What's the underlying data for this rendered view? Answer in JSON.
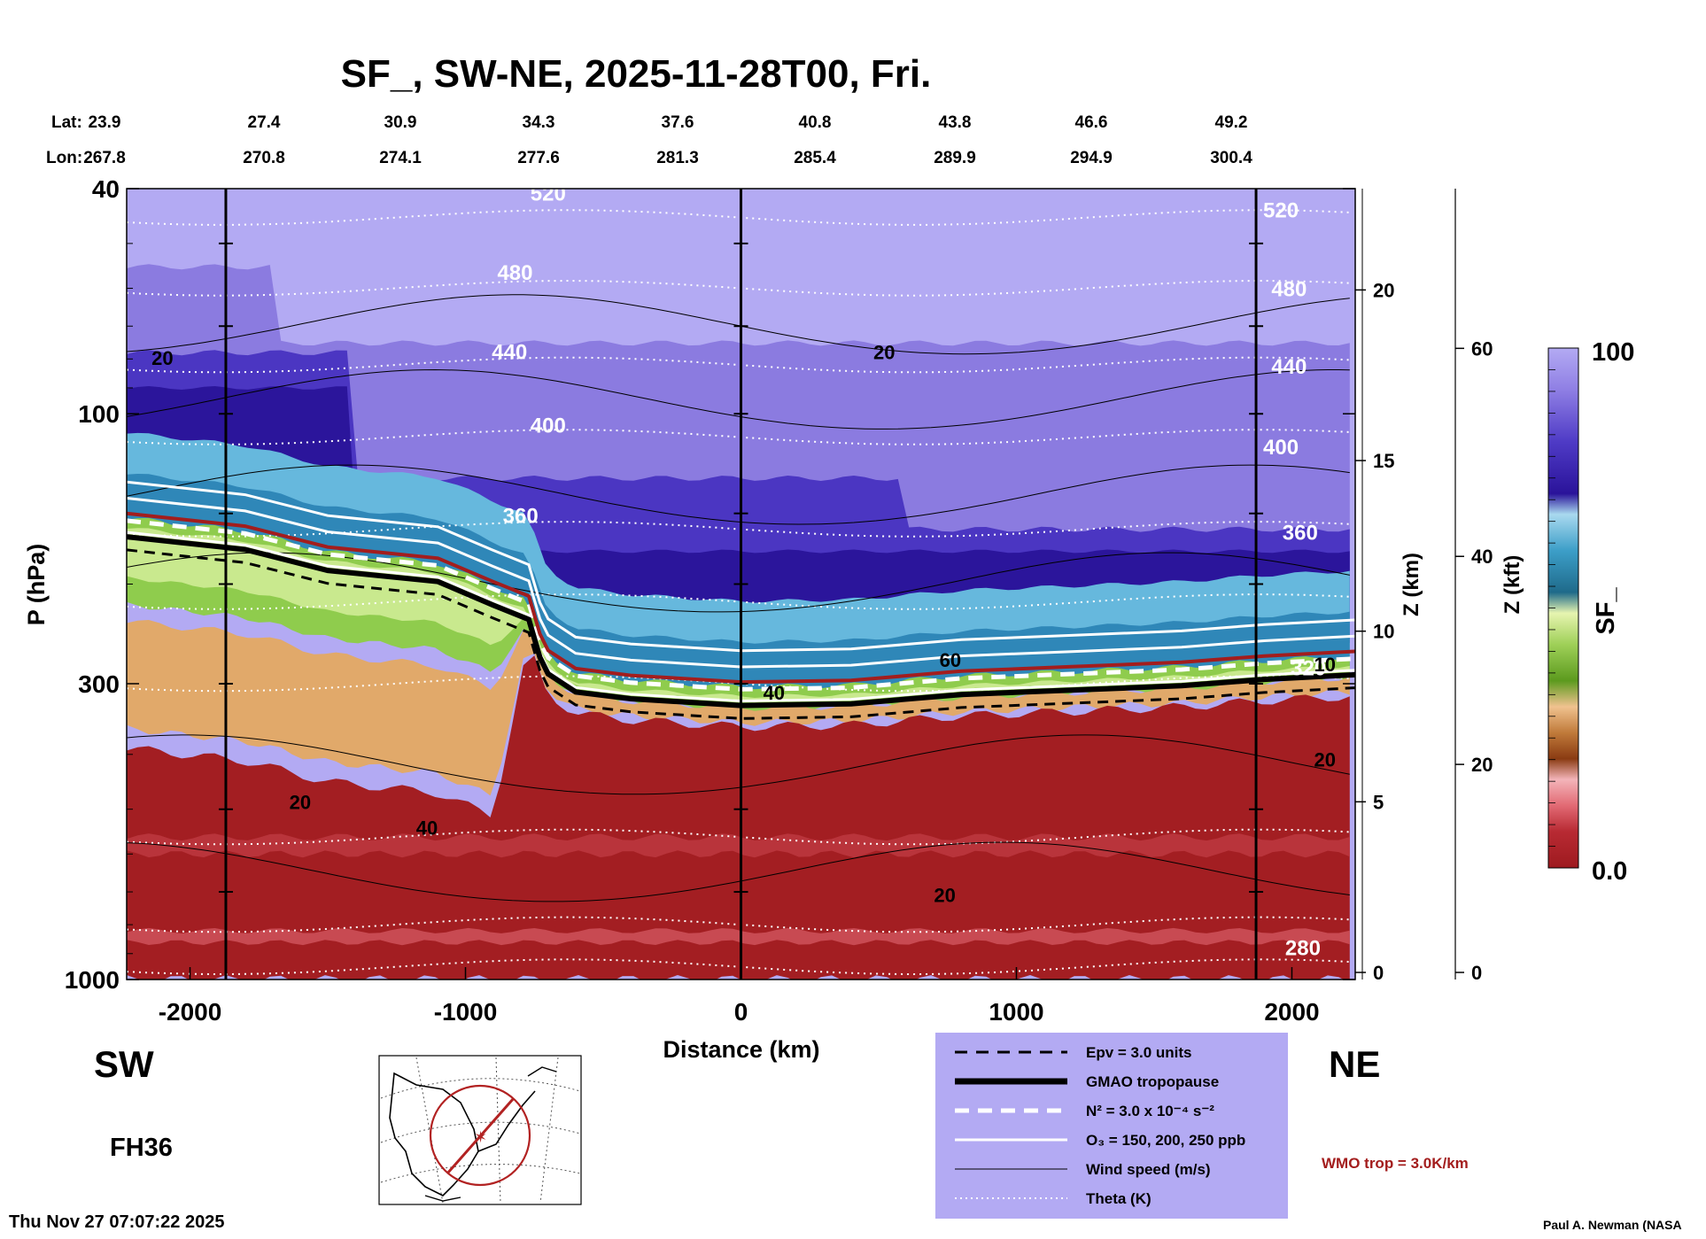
{
  "title": "SF_, SW-NE, 2025-11-28T00, Fri.",
  "coords": {
    "lat_label": "Lat:",
    "lon_label": "Lon:",
    "lat": [
      "23.9",
      "27.4",
      "30.9",
      "34.3",
      "37.6",
      "40.8",
      "43.8",
      "46.6",
      "49.2"
    ],
    "lon": [
      "267.8",
      "270.8",
      "274.1",
      "277.6",
      "281.3",
      "285.4",
      "289.9",
      "294.9",
      "300.4"
    ]
  },
  "axes": {
    "xlabel": "Distance (km)",
    "ylabel": "P (hPa)",
    "z_km_label": "Z (km)",
    "z_kft_label": "Z (kft)",
    "colorbar_label": "SF_"
  },
  "labels": {
    "sw": "SW",
    "ne": "NE",
    "forecast_hour": "FH36",
    "timestamp": "Thu Nov 27 07:07:22 2025",
    "author": "Paul A. Newman (NASA",
    "wmo_note": "WMO trop = 3.0K/km"
  },
  "legend": {
    "items": [
      {
        "label": "Epv = 3.0 units",
        "style": "dashed-black"
      },
      {
        "label": "GMAO tropopause",
        "style": "thick-black"
      },
      {
        "label": "N² = 3.0 x 10⁻⁴ s⁻²",
        "style": "dashed-white"
      },
      {
        "label": "O₃ = 150, 200, 250 ppb",
        "style": "solid-white"
      },
      {
        "label": "Wind speed (m/s)",
        "style": "thin-black"
      },
      {
        "label": "Theta (K)",
        "style": "dotted-white"
      }
    ],
    "background": "#b3aaf3"
  },
  "colors": {
    "wmo": "#a31d1d",
    "stratosphere": "#b3aaf3",
    "tropical_red": "#a31e22"
  },
  "chart_data": {
    "type": "heatmap",
    "title": "SF_, SW-NE, 2025-11-28T00, Fri.",
    "xlabel": "Distance (km)",
    "ylabel": "P (hPa)",
    "x_ticks": [
      -2000,
      -1000,
      0,
      1000,
      2000
    ],
    "xlim": [
      -2230,
      2230
    ],
    "y_ticks": [
      40,
      100,
      300,
      1000
    ],
    "ylim": [
      1000,
      40
    ],
    "y_scale": "log",
    "z_km_ticks": [
      0,
      5,
      10,
      15,
      20
    ],
    "z_kft_ticks": [
      0,
      20,
      40,
      60
    ],
    "colorbar": {
      "min": "0.0",
      "max": "100",
      "range": [
        0,
        100
      ]
    },
    "vertical_lines_km": [
      -1870,
      0,
      1870
    ],
    "theta_labels": [
      {
        "text": "520",
        "x": -700,
        "p": 42
      },
      {
        "text": "480",
        "x": -820,
        "p": 58
      },
      {
        "text": "440",
        "x": -840,
        "p": 80
      },
      {
        "text": "400",
        "x": -700,
        "p": 108
      },
      {
        "text": "360",
        "x": -800,
        "p": 156
      },
      {
        "text": "520",
        "x": 1960,
        "p": 45
      },
      {
        "text": "480",
        "x": 1990,
        "p": 62
      },
      {
        "text": "440",
        "x": 1990,
        "p": 85
      },
      {
        "text": "400",
        "x": 1960,
        "p": 118
      },
      {
        "text": "360",
        "x": 2030,
        "p": 167
      },
      {
        "text": "320",
        "x": 2060,
        "p": 290
      },
      {
        "text": "280",
        "x": 2040,
        "p": 905
      }
    ],
    "wind_labels": [
      {
        "text": "20",
        "x": -2100,
        "p": 82
      },
      {
        "text": "20",
        "x": 520,
        "p": 80
      },
      {
        "text": "60",
        "x": 760,
        "p": 280
      },
      {
        "text": "40",
        "x": 120,
        "p": 320
      },
      {
        "text": "20",
        "x": -1600,
        "p": 500
      },
      {
        "text": "40",
        "x": -1140,
        "p": 555
      },
      {
        "text": "20",
        "x": 740,
        "p": 730
      },
      {
        "text": "20",
        "x": 2120,
        "p": 420
      },
      {
        "text": "10",
        "x": 2120,
        "p": 285
      }
    ],
    "wmo_tropopause": {
      "x": [
        -2230,
        -1800,
        -1500,
        -1100,
        -900,
        -770,
        -730,
        -700,
        -600,
        -400,
        0,
        400,
        800,
        1200,
        1600,
        1900,
        2230
      ],
      "p": [
        150,
        158,
        172,
        180,
        198,
        210,
        245,
        262,
        282,
        290,
        298,
        296,
        285,
        280,
        275,
        268,
        263
      ]
    }
  }
}
